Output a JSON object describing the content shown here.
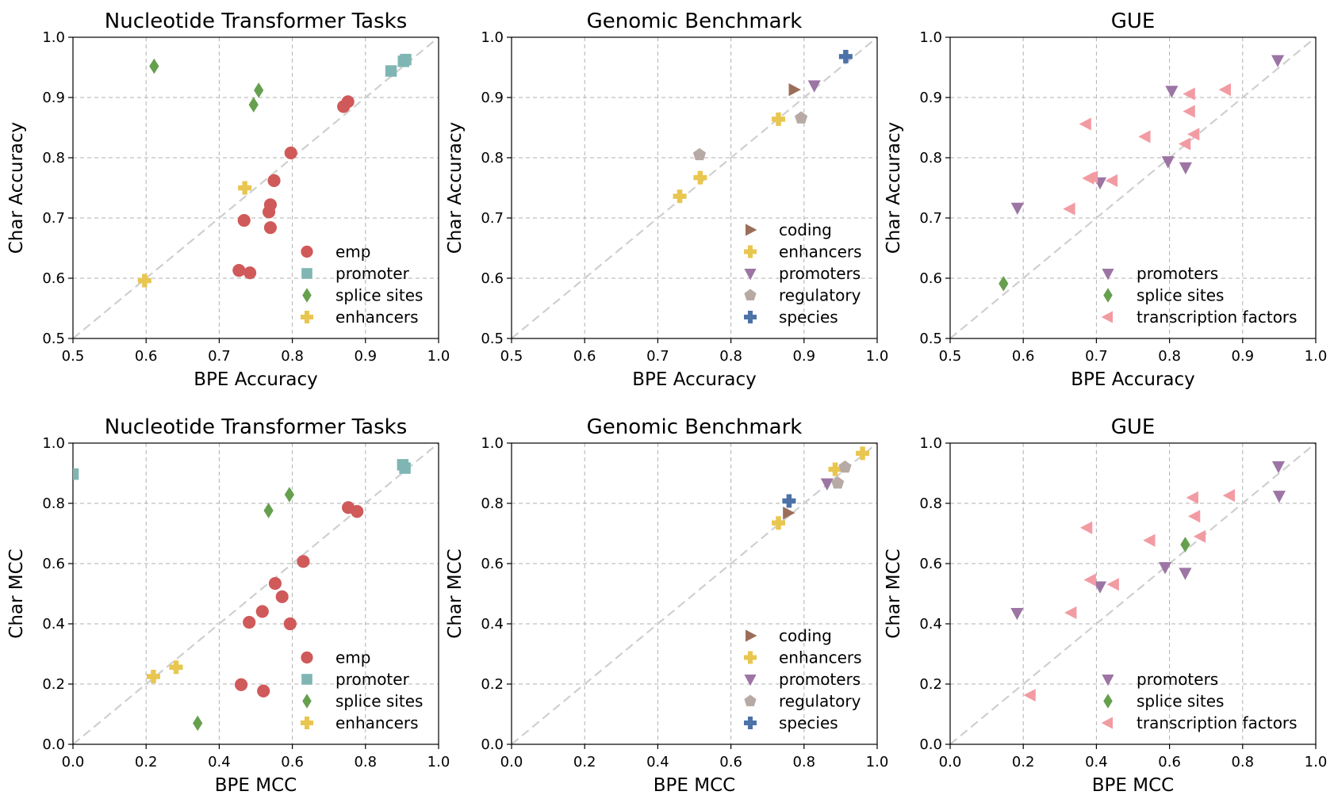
{
  "colors": {
    "emp": "#d0595a",
    "promoter": "#7fb6b4",
    "splice sites": "#66a04e",
    "enhancers": "#e8c64f",
    "coding": "#9b6e5a",
    "promoters": "#9c75a4",
    "regulatory": "#b7aaa4",
    "species": "#4c72a8",
    "transcription factors": "#f29ba3"
  },
  "markers": {
    "emp": "circle",
    "promoter": "square",
    "splice sites": "diamond",
    "enhancers": "plus",
    "coding": "triangle-right",
    "promoters": "triangle-down",
    "regulatory": "pentagon",
    "species": "plus",
    "transcription factors": "triangle-left"
  },
  "chart_data": [
    {
      "type": "scatter",
      "title": "Nucleotide Transformer Tasks",
      "xlabel": "BPE Accuracy",
      "ylabel": "Char Accuracy",
      "xlim": [
        0.5,
        1.0
      ],
      "ylim": [
        0.5,
        1.0
      ],
      "ticks": [
        "0.5",
        "0.6",
        "0.7",
        "0.8",
        "0.9",
        "1.0"
      ],
      "tick_values": [
        0.5,
        0.6,
        0.7,
        0.8,
        0.9,
        1.0
      ],
      "grid": true,
      "legend_position": "lower-right",
      "diagonal": true,
      "series": [
        {
          "name": "emp",
          "x": [
            0.87,
            0.876,
            0.798,
            0.775,
            0.77,
            0.768,
            0.77,
            0.734,
            0.727,
            0.742
          ],
          "y": [
            0.885,
            0.893,
            0.808,
            0.762,
            0.722,
            0.71,
            0.684,
            0.696,
            0.613,
            0.609
          ]
        },
        {
          "name": "promoter",
          "x": [
            0.935,
            0.952,
            0.955
          ],
          "y": [
            0.944,
            0.96,
            0.963
          ]
        },
        {
          "name": "splice sites",
          "x": [
            0.611,
            0.754,
            0.747
          ],
          "y": [
            0.952,
            0.912,
            0.888
          ]
        },
        {
          "name": "enhancers",
          "x": [
            0.735,
            0.598
          ],
          "y": [
            0.75,
            0.596
          ]
        }
      ]
    },
    {
      "type": "scatter",
      "title": "Genomic Benchmark",
      "xlabel": "BPE Accuracy",
      "ylabel": "Char Accuracy",
      "xlim": [
        0.5,
        1.0
      ],
      "ylim": [
        0.5,
        1.0
      ],
      "ticks": [
        "0.5",
        "0.6",
        "0.7",
        "0.8",
        "0.9",
        "1.0"
      ],
      "tick_values": [
        0.5,
        0.6,
        0.7,
        0.8,
        0.9,
        1.0
      ],
      "grid": true,
      "legend_position": "lower-right",
      "diagonal": true,
      "series": [
        {
          "name": "coding",
          "x": [
            0.886
          ],
          "y": [
            0.913
          ]
        },
        {
          "name": "enhancers",
          "x": [
            0.865,
            0.758,
            0.73
          ],
          "y": [
            0.864,
            0.767,
            0.736
          ]
        },
        {
          "name": "promoters",
          "x": [
            0.914
          ],
          "y": [
            0.92
          ]
        },
        {
          "name": "regulatory",
          "x": [
            0.896,
            0.757
          ],
          "y": [
            0.866,
            0.805
          ]
        },
        {
          "name": "species",
          "x": [
            0.957
          ],
          "y": [
            0.968
          ]
        }
      ]
    },
    {
      "type": "scatter",
      "title": "GUE",
      "xlabel": "BPE Accuracy",
      "ylabel": "Char Accuracy",
      "xlim": [
        0.5,
        1.0
      ],
      "ylim": [
        0.5,
        1.0
      ],
      "ticks": [
        "0.5",
        "0.6",
        "0.7",
        "0.8",
        "0.9",
        "1.0"
      ],
      "tick_values": [
        0.5,
        0.6,
        0.7,
        0.8,
        0.9,
        1.0
      ],
      "grid": true,
      "legend_position": "lower-right",
      "diagonal": true,
      "series": [
        {
          "name": "promoters",
          "x": [
            0.948,
            0.803,
            0.798,
            0.822,
            0.705,
            0.592
          ],
          "y": [
            0.962,
            0.911,
            0.794,
            0.784,
            0.759,
            0.717
          ]
        },
        {
          "name": "splice sites",
          "x": [
            0.573
          ],
          "y": [
            0.591
          ]
        },
        {
          "name": "transcription factors",
          "x": [
            0.877,
            0.828,
            0.828,
            0.686,
            0.767,
            0.822,
            0.834,
            0.69,
            0.695,
            0.722,
            0.664
          ],
          "y": [
            0.913,
            0.906,
            0.877,
            0.856,
            0.835,
            0.823,
            0.839,
            0.766,
            0.768,
            0.762,
            0.715
          ]
        }
      ]
    },
    {
      "type": "scatter",
      "title": "Nucleotide Transformer Tasks",
      "xlabel": "BPE MCC",
      "ylabel": "Char MCC",
      "xlim": [
        0.0,
        1.0
      ],
      "ylim": [
        0.0,
        1.0
      ],
      "ticks": [
        "0.0",
        "0.2",
        "0.4",
        "0.6",
        "0.8",
        "1.0"
      ],
      "tick_values": [
        0.0,
        0.2,
        0.4,
        0.6,
        0.8,
        1.0
      ],
      "grid": true,
      "legend_position": "lower-right",
      "diagonal": true,
      "series": [
        {
          "name": "emp",
          "x": [
            0.753,
            0.777,
            0.63,
            0.553,
            0.572,
            0.518,
            0.482,
            0.594,
            0.46,
            0.521
          ],
          "y": [
            0.786,
            0.773,
            0.607,
            0.534,
            0.49,
            0.441,
            0.405,
            0.4,
            0.198,
            0.177
          ]
        },
        {
          "name": "promoter",
          "x": [
            0.902,
            0.908,
            0.0
          ],
          "y": [
            0.928,
            0.917,
            0.897
          ]
        },
        {
          "name": "splice sites",
          "x": [
            0.592,
            0.535,
            0.341
          ],
          "y": [
            0.829,
            0.776,
            0.07
          ]
        },
        {
          "name": "enhancers",
          "x": [
            0.282,
            0.22
          ],
          "y": [
            0.256,
            0.225
          ]
        }
      ]
    },
    {
      "type": "scatter",
      "title": "Genomic Benchmark",
      "xlabel": "BPE MCC",
      "ylabel": "Char MCC",
      "xlim": [
        0.0,
        1.0
      ],
      "ylim": [
        0.0,
        1.0
      ],
      "ticks": [
        "0.0",
        "0.2",
        "0.4",
        "0.6",
        "0.8",
        "1.0"
      ],
      "tick_values": [
        0.0,
        0.2,
        0.4,
        0.6,
        0.8,
        1.0
      ],
      "grid": true,
      "legend_position": "lower-right",
      "diagonal": true,
      "series": [
        {
          "name": "coding",
          "x": [
            0.756
          ],
          "y": [
            0.768
          ]
        },
        {
          "name": "enhancers",
          "x": [
            0.96,
            0.885,
            0.73
          ],
          "y": [
            0.966,
            0.913,
            0.735
          ]
        },
        {
          "name": "promoters",
          "x": [
            0.863
          ],
          "y": [
            0.866
          ]
        },
        {
          "name": "regulatory",
          "x": [
            0.912,
            0.892
          ],
          "y": [
            0.92,
            0.867
          ]
        },
        {
          "name": "species",
          "x": [
            0.759
          ],
          "y": [
            0.808
          ]
        }
      ]
    },
    {
      "type": "scatter",
      "title": "GUE",
      "xlabel": "BPE MCC",
      "ylabel": "Char MCC",
      "xlim": [
        0.0,
        1.0
      ],
      "ylim": [
        0.0,
        1.0
      ],
      "ticks": [
        "0.0",
        "0.2",
        "0.4",
        "0.6",
        "0.8",
        "1.0"
      ],
      "tick_values": [
        0.0,
        0.2,
        0.4,
        0.6,
        0.8,
        1.0
      ],
      "grid": true,
      "legend_position": "lower-right",
      "diagonal": true,
      "series": [
        {
          "name": "promoters",
          "x": [
            0.898,
            0.9,
            0.588,
            0.643,
            0.41,
            0.183
          ],
          "y": [
            0.923,
            0.825,
            0.588,
            0.569,
            0.524,
            0.436
          ]
        },
        {
          "name": "splice sites",
          "x": [
            0.643
          ],
          "y": [
            0.663
          ]
        },
        {
          "name": "transcription factors",
          "x": [
            0.765,
            0.665,
            0.67,
            0.685,
            0.547,
            0.375,
            0.385,
            0.448,
            0.332,
            0.22
          ],
          "y": [
            0.826,
            0.819,
            0.757,
            0.69,
            0.677,
            0.719,
            0.546,
            0.531,
            0.437,
            0.163
          ]
        }
      ]
    }
  ]
}
